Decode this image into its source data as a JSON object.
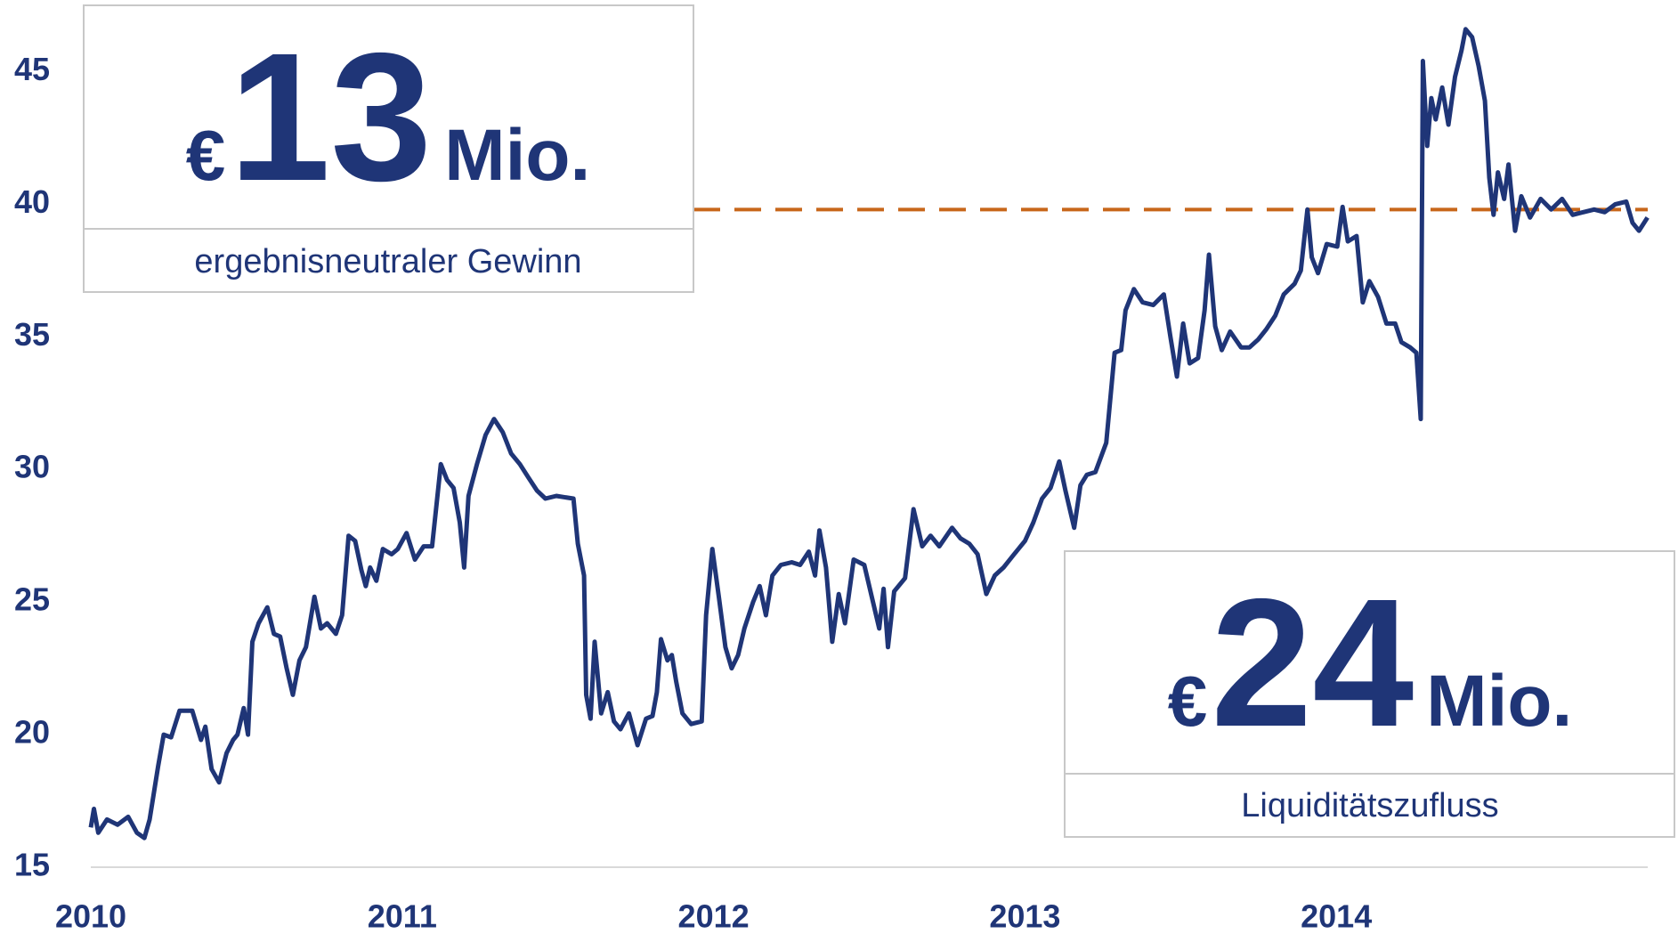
{
  "chart_data": {
    "type": "line",
    "x": [
      2010.0,
      2010.01,
      2010.024,
      2010.052,
      2010.086,
      2010.12,
      2010.148,
      2010.172,
      2010.189,
      2010.216,
      2010.234,
      2010.258,
      2010.285,
      2010.326,
      2010.354,
      2010.368,
      2010.388,
      2010.412,
      2010.436,
      2010.457,
      2010.471,
      2010.491,
      2010.505,
      2010.519,
      2010.539,
      2010.567,
      2010.588,
      2010.608,
      2010.629,
      2010.649,
      2010.67,
      2010.691,
      2010.718,
      2010.739,
      2010.759,
      2010.787,
      2010.807,
      2010.828,
      2010.849,
      2010.869,
      2010.883,
      2010.897,
      2010.917,
      2010.938,
      2010.966,
      2010.986,
      2011.014,
      2011.041,
      2011.069,
      2011.096,
      2011.124,
      2011.144,
      2011.165,
      2011.185,
      2011.199,
      2011.213,
      2011.24,
      2011.268,
      2011.295,
      2011.323,
      2011.35,
      2011.378,
      2011.405,
      2011.433,
      2011.46,
      2011.495,
      2011.55,
      2011.564,
      2011.584,
      2011.591,
      2011.605,
      2011.618,
      2011.639,
      2011.66,
      2011.68,
      2011.701,
      2011.728,
      2011.756,
      2011.783,
      2011.804,
      2011.818,
      2011.831,
      2011.852,
      2011.866,
      2011.88,
      2011.9,
      2011.928,
      2011.962,
      2011.976,
      2011.996,
      2012.017,
      2012.038,
      2012.058,
      2012.079,
      2012.099,
      2012.127,
      2012.148,
      2012.168,
      2012.189,
      2012.216,
      2012.251,
      2012.278,
      2012.306,
      2012.326,
      2012.34,
      2012.361,
      2012.381,
      2012.402,
      2012.422,
      2012.45,
      2012.484,
      2012.512,
      2012.532,
      2012.546,
      2012.56,
      2012.58,
      2012.615,
      2012.642,
      2012.67,
      2012.697,
      2012.725,
      2012.766,
      2012.793,
      2012.821,
      2012.848,
      2012.876,
      2012.903,
      2012.931,
      2012.965,
      2013.0,
      2013.027,
      2013.055,
      2013.082,
      2013.11,
      2013.13,
      2013.158,
      2013.178,
      2013.199,
      2013.226,
      2013.261,
      2013.288,
      2013.309,
      2013.323,
      2013.35,
      2013.378,
      2013.412,
      2013.446,
      2013.467,
      2013.488,
      2013.508,
      2013.529,
      2013.556,
      2013.577,
      2013.591,
      2013.611,
      2013.632,
      2013.659,
      2013.694,
      2013.721,
      2013.749,
      2013.776,
      2013.804,
      2013.831,
      2013.866,
      2013.886,
      2013.907,
      2013.921,
      2013.941,
      2013.969,
      2014.003,
      2014.02,
      2014.037,
      2014.065,
      2014.085,
      2014.106,
      2014.134,
      2014.161,
      2014.189,
      2014.209,
      2014.237,
      2014.257,
      2014.271,
      2014.278,
      2014.292,
      2014.305,
      2014.319,
      2014.34,
      2014.36,
      2014.381,
      2014.402,
      2014.415,
      2014.436,
      2014.457,
      2014.477,
      2014.491,
      2014.505,
      2014.519,
      2014.539,
      2014.553,
      2014.574,
      2014.594,
      2014.622,
      2014.656,
      2014.69,
      2014.725,
      2014.759,
      2014.793,
      2014.828,
      2014.862,
      2014.896,
      2014.931,
      2014.951,
      2014.972,
      2014.999
    ],
    "series": [
      {
        "color": "#1f3577",
        "values": [
          16.5,
          17.2,
          16.3,
          16.8,
          16.6,
          16.9,
          16.3,
          16.1,
          16.8,
          18.8,
          20.0,
          19.9,
          20.9,
          20.9,
          19.8,
          20.3,
          18.7,
          18.2,
          19.3,
          19.8,
          20.0,
          21.0,
          20.0,
          23.5,
          24.2,
          24.8,
          23.8,
          23.7,
          22.5,
          21.5,
          22.8,
          23.3,
          25.2,
          24.0,
          24.2,
          23.8,
          24.5,
          27.5,
          27.3,
          26.2,
          25.6,
          26.3,
          25.8,
          27.0,
          26.8,
          27.0,
          27.6,
          26.6,
          27.1,
          27.1,
          30.2,
          29.6,
          29.3,
          28.0,
          26.3,
          29.0,
          30.2,
          31.3,
          31.9,
          31.4,
          30.6,
          30.2,
          29.7,
          29.2,
          28.9,
          29.0,
          28.9,
          27.2,
          26.0,
          21.5,
          20.6,
          23.5,
          20.8,
          21.6,
          20.5,
          20.2,
          20.8,
          19.6,
          20.6,
          20.7,
          21.6,
          23.6,
          22.8,
          23.0,
          22.0,
          20.8,
          20.4,
          20.5,
          24.5,
          27.0,
          25.2,
          23.3,
          22.5,
          23.0,
          24.0,
          25.0,
          25.6,
          24.5,
          26.0,
          26.4,
          26.5,
          26.4,
          26.9,
          26.0,
          27.7,
          26.3,
          23.5,
          25.3,
          24.2,
          26.6,
          26.4,
          25.0,
          24.0,
          25.5,
          23.3,
          25.4,
          25.9,
          28.5,
          27.1,
          27.5,
          27.1,
          27.8,
          27.4,
          27.2,
          26.8,
          25.3,
          26.0,
          26.3,
          26.8,
          27.3,
          28.0,
          28.9,
          29.3,
          30.3,
          29.2,
          27.8,
          29.4,
          29.8,
          29.9,
          31.0,
          34.4,
          34.5,
          36.0,
          36.8,
          36.3,
          36.2,
          36.6,
          35.0,
          33.5,
          35.5,
          34.0,
          34.2,
          36.0,
          38.1,
          35.4,
          34.5,
          35.2,
          34.6,
          34.6,
          34.9,
          35.3,
          35.8,
          36.6,
          37.0,
          37.5,
          39.8,
          38.0,
          37.4,
          38.5,
          38.4,
          39.9,
          38.6,
          38.8,
          36.3,
          37.1,
          36.5,
          35.5,
          35.5,
          34.8,
          34.6,
          34.4,
          31.9,
          45.4,
          42.2,
          44.0,
          43.2,
          44.4,
          43.0,
          44.8,
          45.8,
          46.6,
          46.3,
          45.2,
          43.9,
          41.0,
          39.6,
          41.2,
          40.2,
          41.5,
          39.0,
          40.3,
          39.5,
          40.2,
          39.8,
          40.2,
          39.6,
          39.7,
          39.8,
          39.7,
          40.0,
          40.1,
          39.3,
          39.0,
          39.5
        ]
      }
    ],
    "xlim": [
      2010,
      2015
    ],
    "xticks": [
      2010,
      2011,
      2012,
      2013,
      2014
    ],
    "ylim": [
      15,
      47.5
    ],
    "yticks": [
      15,
      20,
      25,
      30,
      35,
      40,
      45
    ],
    "grid": false,
    "reference_line": {
      "value": 39.8,
      "color": "#c8661a"
    }
  },
  "callouts": [
    {
      "currency": "€",
      "amount": 13,
      "unit": "Mio.",
      "label": "ergebnisneutraler Gewinn"
    },
    {
      "currency": "€",
      "amount": 24,
      "unit": "Mio.",
      "label": "Liquiditätszufluss"
    }
  ]
}
